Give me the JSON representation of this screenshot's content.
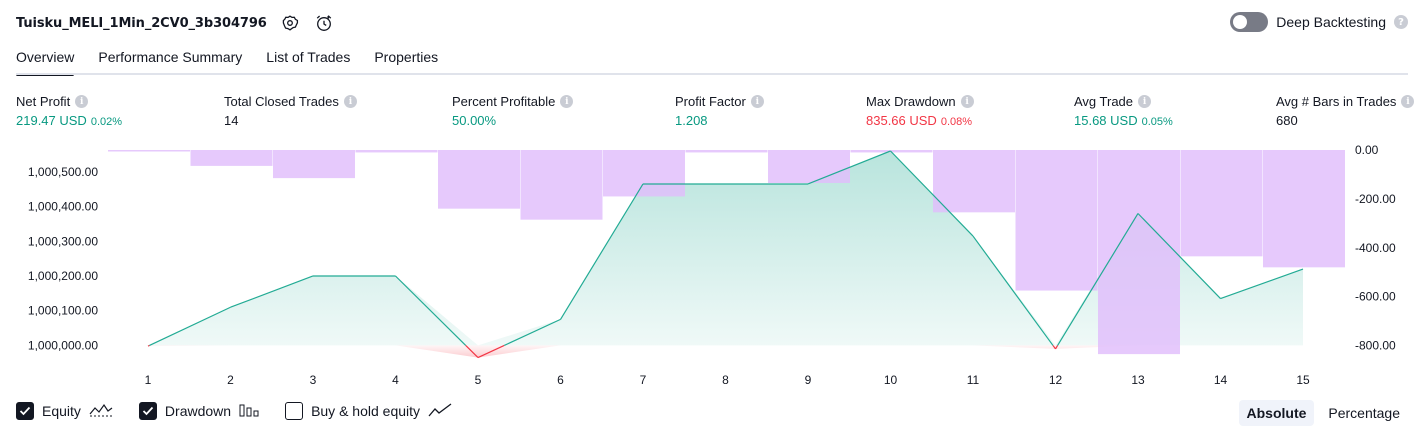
{
  "header": {
    "title": "Tuisku_MELI_1Min_2CV0_3b304796",
    "deep_backtesting_label": "Deep Backtesting",
    "deep_backtesting_enabled": false
  },
  "tabs": [
    {
      "label": "Overview",
      "active": true
    },
    {
      "label": "Performance Summary",
      "active": false
    },
    {
      "label": "List of Trades",
      "active": false
    },
    {
      "label": "Properties",
      "active": false
    }
  ],
  "metrics": {
    "net_profit": {
      "label": "Net Profit",
      "value": "219.47 USD",
      "pct": "0.02%"
    },
    "total_closed_trades": {
      "label": "Total Closed Trades",
      "value": "14"
    },
    "percent_profitable": {
      "label": "Percent Profitable",
      "value": "50.00%"
    },
    "profit_factor": {
      "label": "Profit Factor",
      "value": "1.208"
    },
    "max_drawdown": {
      "label": "Max Drawdown",
      "value": "835.66 USD",
      "pct": "0.08%"
    },
    "avg_trade": {
      "label": "Avg Trade",
      "value": "15.68 USD",
      "pct": "0.05%"
    },
    "avg_bars": {
      "label": "Avg # Bars in Trades",
      "value": "680"
    }
  },
  "chart_data": {
    "type": "area",
    "x": [
      1,
      2,
      3,
      4,
      5,
      6,
      7,
      8,
      9,
      10,
      11,
      12,
      13,
      14,
      15
    ],
    "equity_baseline": 1000000,
    "series": [
      {
        "name": "Equity",
        "type": "area",
        "values": [
          999998,
          1000110,
          1000200,
          1000200,
          999965,
          1000075,
          1000465,
          1000465,
          1000465,
          1000560,
          1000315,
          999990,
          1000380,
          1000135,
          1000220
        ]
      },
      {
        "name": "Drawdown",
        "type": "bar",
        "values": [
          0,
          -65,
          -115,
          -10,
          -240,
          -285,
          -190,
          -10,
          -135,
          -10,
          -255,
          -575,
          -835,
          -435,
          -480
        ]
      }
    ],
    "left_axis": {
      "ticks": [
        "1,000,000.00",
        "1,000,100.00",
        "1,000,200.00",
        "1,000,300.00",
        "1,000,400.00",
        "1,000,500.00"
      ],
      "ylim": [
        999935,
        1000560
      ]
    },
    "right_axis": {
      "ticks": [
        "0.00",
        "-200.00",
        "-400.00",
        "-600.00",
        "-800.00"
      ],
      "ylim": [
        -900,
        0
      ]
    },
    "x_tick_labels": [
      "1",
      "2",
      "3",
      "4",
      "5",
      "6",
      "7",
      "8",
      "9",
      "10",
      "11",
      "12",
      "13",
      "14",
      "15"
    ],
    "colors": {
      "equity_line": "#22ab94",
      "equity_fill": "#22ab94",
      "negative": "#f23645",
      "drawdown_bar": "#e1bdfb"
    }
  },
  "legend": {
    "equity": {
      "label": "Equity",
      "checked": true
    },
    "drawdown": {
      "label": "Drawdown",
      "checked": true
    },
    "buy_hold": {
      "label": "Buy & hold equity",
      "checked": false
    }
  },
  "mode": {
    "absolute": "Absolute",
    "percentage": "Percentage",
    "selected": "Absolute"
  }
}
